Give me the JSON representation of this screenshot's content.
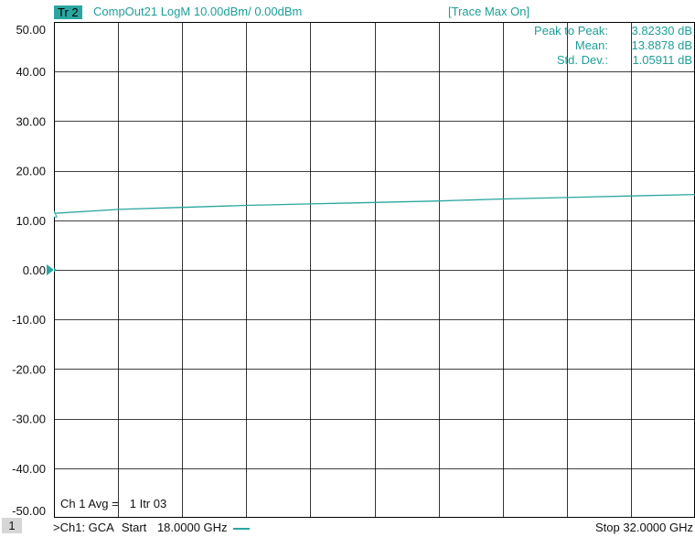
{
  "header": {
    "trace_badge": "Tr 2",
    "trace_desc": "CompOut21 LogM 10.00dBm/  0.00dBm",
    "trace_max": "[Trace Max On]"
  },
  "stats": {
    "peak_label": "Peak to Peak:",
    "peak_value": "3.82330 dB",
    "mean_label": "Mean:",
    "mean_value": "13.8878 dB",
    "std_label": "Std. Dev.:",
    "std_value": "1.05911 dB"
  },
  "avg": {
    "label": "Ch 1 Avg =",
    "value": "1 Itr 03"
  },
  "footer": {
    "channel_number": "1",
    "channel_label": ">Ch1: GCA",
    "start_label": "Start",
    "start_value": "18.0000 GHz",
    "stop_label": "Stop",
    "stop_value": "32.0000 GHz"
  },
  "colors": {
    "trace": "#2aa6a0",
    "grid": "#000000"
  },
  "chart_data": {
    "type": "line",
    "title": "",
    "xlabel": "",
    "ylabel": "",
    "xlim": [
      18.0,
      32.0
    ],
    "ylim": [
      -50,
      50
    ],
    "yticks": [
      "50.00",
      "40.00",
      "30.00",
      "20.00",
      "10.00",
      "0.00",
      "-10.00",
      "-20.00",
      "-30.00",
      "-40.00",
      "-50.00"
    ],
    "grid": true,
    "reference_level": 0.0,
    "series": [
      {
        "x": [
          18.0,
          19.4,
          20.8,
          22.2,
          23.6,
          25.0,
          26.4,
          27.8,
          29.2,
          30.6,
          32.0
        ],
        "values": [
          11.4,
          12.2,
          12.6,
          13.0,
          13.3,
          13.6,
          13.9,
          14.3,
          14.6,
          14.9,
          15.2
        ]
      }
    ]
  }
}
